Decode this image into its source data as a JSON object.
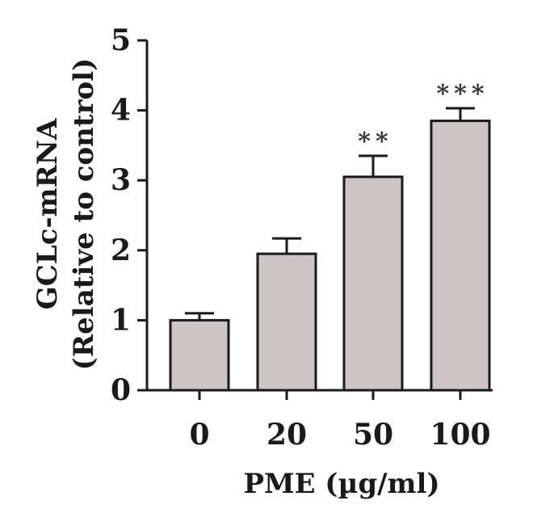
{
  "chart_data": {
    "type": "bar",
    "categories": [
      "0",
      "20",
      "50",
      "100"
    ],
    "values": [
      1.0,
      1.95,
      3.05,
      3.85
    ],
    "errors": [
      0.1,
      0.22,
      0.3,
      0.18
    ],
    "significance": [
      "",
      "",
      "**",
      "***"
    ],
    "ylabel_line1": "GCLc-mRNA",
    "ylabel_line2": "(Relative to control)",
    "xlabel": "PME (µg/ml)",
    "ylim": [
      0,
      5
    ],
    "yticks": [
      "0",
      "1",
      "2",
      "3",
      "4",
      "5"
    ],
    "bar_color": "#cdc5c5",
    "grid": false
  }
}
